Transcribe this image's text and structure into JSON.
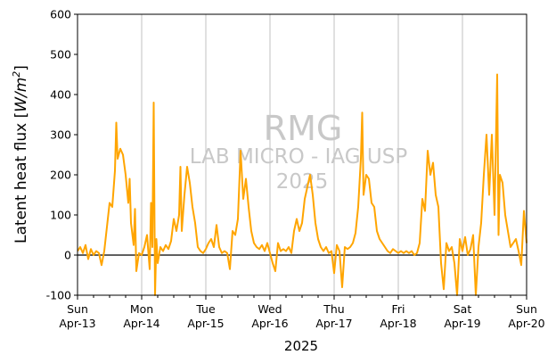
{
  "chart_data": {
    "type": "line",
    "xlabel": "2025",
    "ylabel": "Latent heat flux [W/m²]",
    "ylabel_parts": {
      "prefix": "Latent heat flux [",
      "main": "W/m",
      "sup": "2",
      "suffix": "]"
    },
    "ylim": [
      -100,
      600
    ],
    "yticks": [
      -100,
      0,
      100,
      200,
      300,
      400,
      500,
      600
    ],
    "xlim": [
      "2025-04-13",
      "2025-04-20"
    ],
    "xticks": [
      {
        "day": "Sun",
        "date": "Apr-13"
      },
      {
        "day": "Mon",
        "date": "Apr-14"
      },
      {
        "day": "Tue",
        "date": "Apr-15"
      },
      {
        "day": "Wed",
        "date": "Apr-16"
      },
      {
        "day": "Thu",
        "date": "Apr-17"
      },
      {
        "day": "Fri",
        "date": "Apr-18"
      },
      {
        "day": "Sat",
        "date": "Apr-19"
      },
      {
        "day": "Sun",
        "date": "Apr-20"
      }
    ],
    "minor_ticks_per_day": 4,
    "grid": "vertical lines at each day",
    "zero_line": true,
    "line_color": "#ffa500",
    "watermark": {
      "line1": "RMG",
      "line2": "LAB MICRO - IAG USP",
      "line3": "2025"
    },
    "series": [
      {
        "color": "#ffa500",
        "points": [
          [
            "2025-04-13 00:00",
            10
          ],
          [
            "2025-04-13 01:00",
            20
          ],
          [
            "2025-04-13 02:00",
            5
          ],
          [
            "2025-04-13 03:00",
            25
          ],
          [
            "2025-04-13 04:00",
            -10
          ],
          [
            "2025-04-13 05:00",
            15
          ],
          [
            "2025-04-13 06:00",
            0
          ],
          [
            "2025-04-13 07:00",
            10
          ],
          [
            "2025-04-13 08:00",
            5
          ],
          [
            "2025-04-13 09:00",
            -25
          ],
          [
            "2025-04-13 10:00",
            10
          ],
          [
            "2025-04-13 11:00",
            70
          ],
          [
            "2025-04-13 12:00",
            130
          ],
          [
            "2025-04-13 13:00",
            120
          ],
          [
            "2025-04-13 14:00",
            210
          ],
          [
            "2025-04-13 14:30",
            330
          ],
          [
            "2025-04-13 15:00",
            240
          ],
          [
            "2025-04-13 16:00",
            265
          ],
          [
            "2025-04-13 17:00",
            250
          ],
          [
            "2025-04-13 18:00",
            200
          ],
          [
            "2025-04-13 19:00",
            130
          ],
          [
            "2025-04-13 19:30",
            190
          ],
          [
            "2025-04-13 20:00",
            80
          ],
          [
            "2025-04-13 21:00",
            25
          ],
          [
            "2025-04-13 21:30",
            115
          ],
          [
            "2025-04-13 22:00",
            -40
          ],
          [
            "2025-04-13 23:00",
            5
          ],
          [
            "2025-04-14 00:00",
            0
          ],
          [
            "2025-04-14 01:00",
            20
          ],
          [
            "2025-04-14 02:00",
            50
          ],
          [
            "2025-04-14 03:00",
            -35
          ],
          [
            "2025-04-14 03:30",
            130
          ],
          [
            "2025-04-14 04:00",
            20
          ],
          [
            "2025-04-14 04:30",
            380
          ],
          [
            "2025-04-14 05:00",
            -100
          ],
          [
            "2025-04-14 05:30",
            40
          ],
          [
            "2025-04-14 06:00",
            -20
          ],
          [
            "2025-04-14 07:00",
            20
          ],
          [
            "2025-04-14 08:00",
            10
          ],
          [
            "2025-04-14 09:00",
            25
          ],
          [
            "2025-04-14 10:00",
            15
          ],
          [
            "2025-04-14 11:00",
            35
          ],
          [
            "2025-04-14 12:00",
            90
          ],
          [
            "2025-04-14 13:00",
            60
          ],
          [
            "2025-04-14 14:00",
            100
          ],
          [
            "2025-04-14 14:30",
            220
          ],
          [
            "2025-04-14 15:00",
            60
          ],
          [
            "2025-04-14 16:00",
            150
          ],
          [
            "2025-04-14 17:00",
            220
          ],
          [
            "2025-04-14 18:00",
            180
          ],
          [
            "2025-04-14 19:00",
            120
          ],
          [
            "2025-04-14 20:00",
            80
          ],
          [
            "2025-04-14 21:00",
            20
          ],
          [
            "2025-04-14 22:00",
            10
          ],
          [
            "2025-04-14 23:00",
            5
          ],
          [
            "2025-04-15 00:00",
            15
          ],
          [
            "2025-04-15 01:00",
            30
          ],
          [
            "2025-04-15 02:00",
            40
          ],
          [
            "2025-04-15 03:00",
            20
          ],
          [
            "2025-04-15 04:00",
            75
          ],
          [
            "2025-04-15 05:00",
            20
          ],
          [
            "2025-04-15 06:00",
            5
          ],
          [
            "2025-04-15 07:00",
            10
          ],
          [
            "2025-04-15 08:00",
            5
          ],
          [
            "2025-04-15 09:00",
            -35
          ],
          [
            "2025-04-15 10:00",
            60
          ],
          [
            "2025-04-15 11:00",
            50
          ],
          [
            "2025-04-15 12:00",
            90
          ],
          [
            "2025-04-15 13:00",
            260
          ],
          [
            "2025-04-15 14:00",
            140
          ],
          [
            "2025-04-15 15:00",
            190
          ],
          [
            "2025-04-15 16:00",
            120
          ],
          [
            "2025-04-15 17:00",
            60
          ],
          [
            "2025-04-15 18:00",
            30
          ],
          [
            "2025-04-15 19:00",
            20
          ],
          [
            "2025-04-15 20:00",
            15
          ],
          [
            "2025-04-15 21:00",
            25
          ],
          [
            "2025-04-15 22:00",
            10
          ],
          [
            "2025-04-15 23:00",
            30
          ],
          [
            "2025-04-16 00:00",
            5
          ],
          [
            "2025-04-16 01:00",
            -20
          ],
          [
            "2025-04-16 02:00",
            -40
          ],
          [
            "2025-04-16 03:00",
            30
          ],
          [
            "2025-04-16 04:00",
            10
          ],
          [
            "2025-04-16 05:00",
            15
          ],
          [
            "2025-04-16 06:00",
            10
          ],
          [
            "2025-04-16 07:00",
            20
          ],
          [
            "2025-04-16 08:00",
            5
          ],
          [
            "2025-04-16 09:00",
            60
          ],
          [
            "2025-04-16 10:00",
            90
          ],
          [
            "2025-04-16 11:00",
            60
          ],
          [
            "2025-04-16 12:00",
            80
          ],
          [
            "2025-04-16 13:00",
            140
          ],
          [
            "2025-04-16 14:00",
            170
          ],
          [
            "2025-04-16 15:00",
            200
          ],
          [
            "2025-04-16 16:00",
            150
          ],
          [
            "2025-04-16 17:00",
            80
          ],
          [
            "2025-04-16 18:00",
            40
          ],
          [
            "2025-04-16 19:00",
            20
          ],
          [
            "2025-04-16 20:00",
            10
          ],
          [
            "2025-04-16 21:00",
            20
          ],
          [
            "2025-04-16 22:00",
            5
          ],
          [
            "2025-04-16 23:00",
            10
          ],
          [
            "2025-04-17 00:00",
            -45
          ],
          [
            "2025-04-17 01:00",
            25
          ],
          [
            "2025-04-17 02:00",
            10
          ],
          [
            "2025-04-17 03:00",
            -80
          ],
          [
            "2025-04-17 04:00",
            20
          ],
          [
            "2025-04-17 05:00",
            15
          ],
          [
            "2025-04-17 06:00",
            20
          ],
          [
            "2025-04-17 07:00",
            30
          ],
          [
            "2025-04-17 08:00",
            55
          ],
          [
            "2025-04-17 09:00",
            120
          ],
          [
            "2025-04-17 10:00",
            240
          ],
          [
            "2025-04-17 10:30",
            355
          ],
          [
            "2025-04-17 11:00",
            150
          ],
          [
            "2025-04-17 12:00",
            200
          ],
          [
            "2025-04-17 13:00",
            190
          ],
          [
            "2025-04-17 14:00",
            130
          ],
          [
            "2025-04-17 15:00",
            120
          ],
          [
            "2025-04-17 16:00",
            60
          ],
          [
            "2025-04-17 17:00",
            40
          ],
          [
            "2025-04-17 18:00",
            30
          ],
          [
            "2025-04-17 19:00",
            20
          ],
          [
            "2025-04-17 20:00",
            10
          ],
          [
            "2025-04-17 21:00",
            5
          ],
          [
            "2025-04-17 22:00",
            15
          ],
          [
            "2025-04-17 23:00",
            10
          ],
          [
            "2025-04-18 00:00",
            5
          ],
          [
            "2025-04-18 01:00",
            10
          ],
          [
            "2025-04-18 02:00",
            5
          ],
          [
            "2025-04-18 03:00",
            10
          ],
          [
            "2025-04-18 04:00",
            5
          ],
          [
            "2025-04-18 05:00",
            10
          ],
          [
            "2025-04-18 06:00",
            0
          ],
          [
            "2025-04-18 07:00",
            5
          ],
          [
            "2025-04-18 08:00",
            30
          ],
          [
            "2025-04-18 09:00",
            140
          ],
          [
            "2025-04-18 10:00",
            110
          ],
          [
            "2025-04-18 11:00",
            260
          ],
          [
            "2025-04-18 12:00",
            200
          ],
          [
            "2025-04-18 13:00",
            230
          ],
          [
            "2025-04-18 14:00",
            150
          ],
          [
            "2025-04-18 15:00",
            120
          ],
          [
            "2025-04-18 16:00",
            -20
          ],
          [
            "2025-04-18 17:00",
            -85
          ],
          [
            "2025-04-18 18:00",
            30
          ],
          [
            "2025-04-18 19:00",
            10
          ],
          [
            "2025-04-18 20:00",
            20
          ],
          [
            "2025-04-18 21:00",
            -20
          ],
          [
            "2025-04-18 22:00",
            -100
          ],
          [
            "2025-04-18 23:00",
            40
          ],
          [
            "2025-04-19 00:00",
            10
          ],
          [
            "2025-04-19 01:00",
            45
          ],
          [
            "2025-04-19 02:00",
            0
          ],
          [
            "2025-04-19 03:00",
            15
          ],
          [
            "2025-04-19 04:00",
            50
          ],
          [
            "2025-04-19 05:00",
            -100
          ],
          [
            "2025-04-19 06:00",
            20
          ],
          [
            "2025-04-19 07:00",
            80
          ],
          [
            "2025-04-19 08:00",
            200
          ],
          [
            "2025-04-19 09:00",
            300
          ],
          [
            "2025-04-19 10:00",
            150
          ],
          [
            "2025-04-19 11:00",
            300
          ],
          [
            "2025-04-19 12:00",
            100
          ],
          [
            "2025-04-19 13:00",
            450
          ],
          [
            "2025-04-19 13:30",
            50
          ],
          [
            "2025-04-19 14:00",
            200
          ],
          [
            "2025-04-19 15:00",
            180
          ],
          [
            "2025-04-19 16:00",
            100
          ],
          [
            "2025-04-19 17:00",
            60
          ],
          [
            "2025-04-19 18:00",
            20
          ],
          [
            "2025-04-19 19:00",
            30
          ],
          [
            "2025-04-19 20:00",
            40
          ],
          [
            "2025-04-19 21:00",
            10
          ],
          [
            "2025-04-19 22:00",
            -25
          ],
          [
            "2025-04-19 23:00",
            110
          ],
          [
            "2025-04-20 00:00",
            30
          ]
        ]
      }
    ]
  }
}
